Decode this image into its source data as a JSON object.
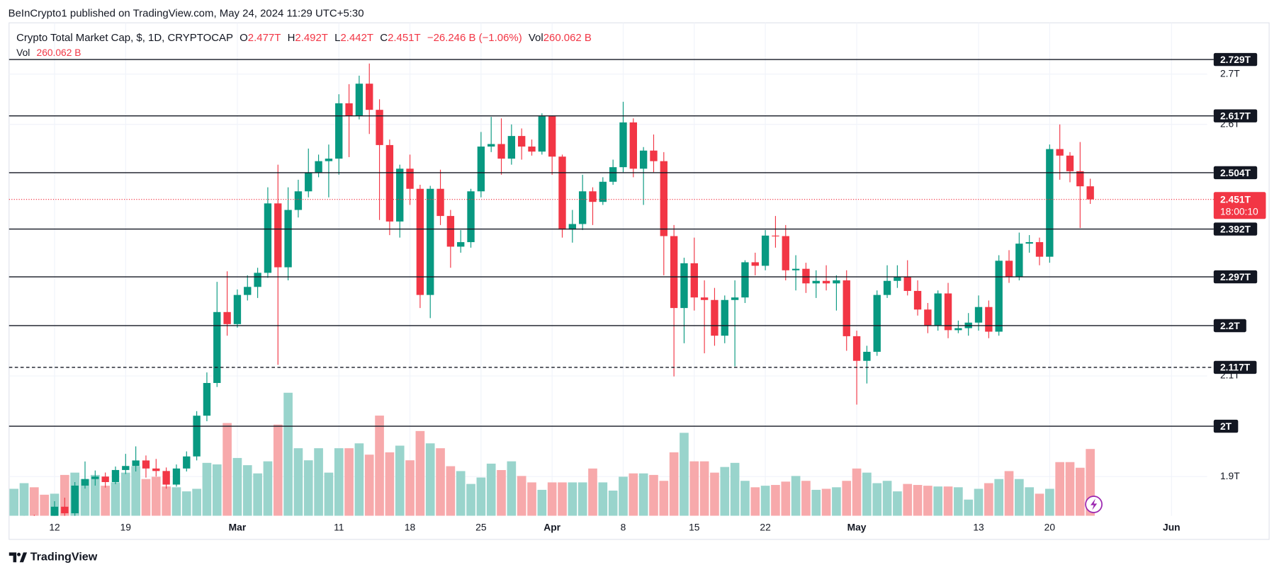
{
  "header": {
    "published": "BeInCrypto1 published on TradingView.com, May 24, 2024 11:29 UTC+5:30"
  },
  "legend": {
    "title": "Crypto Total Market Cap, $, 1D, CRYPTOCAP",
    "items": [
      {
        "key": "O",
        "value": "2.477T"
      },
      {
        "key": "H",
        "value": "2.492T"
      },
      {
        "key": "L",
        "value": "2.442T"
      },
      {
        "key": "C",
        "value": "2.451T"
      },
      {
        "key": "",
        "value": "−26.246 B (−1.06%)"
      },
      {
        "key": "Vol",
        "value": "260.062 B"
      }
    ],
    "volume_key": "Vol",
    "volume_value": "260.062 B"
  },
  "chart_data": {
    "type": "candlestick",
    "x": [
      "02-08",
      "02-09",
      "02-10",
      "02-11",
      "02-12",
      "02-13",
      "02-14",
      "02-15",
      "02-16",
      "02-17",
      "02-18",
      "02-19",
      "02-20",
      "02-21",
      "02-22",
      "02-23",
      "02-24",
      "02-25",
      "02-26",
      "02-27",
      "02-28",
      "02-29",
      "03-01",
      "03-02",
      "03-03",
      "03-04",
      "03-05",
      "03-06",
      "03-07",
      "03-08",
      "03-09",
      "03-10",
      "03-11",
      "03-12",
      "03-13",
      "03-14",
      "03-15",
      "03-16",
      "03-17",
      "03-18",
      "03-19",
      "03-20",
      "03-21",
      "03-22",
      "03-23",
      "03-24",
      "03-25",
      "03-26",
      "03-27",
      "03-28",
      "03-29",
      "03-30",
      "03-31",
      "04-01",
      "04-02",
      "04-03",
      "04-04",
      "04-05",
      "04-06",
      "04-07",
      "04-08",
      "04-09",
      "04-10",
      "04-11",
      "04-12",
      "04-13",
      "04-14",
      "04-15",
      "04-16",
      "04-17",
      "04-18",
      "04-19",
      "04-20",
      "04-21",
      "04-22",
      "04-23",
      "04-24",
      "04-25",
      "04-26",
      "04-27",
      "04-28",
      "04-29",
      "04-30",
      "05-01",
      "05-02",
      "05-03",
      "05-04",
      "05-05",
      "05-06",
      "05-07",
      "05-08",
      "05-09",
      "05-10",
      "05-11",
      "05-12",
      "05-13",
      "05-14",
      "05-15",
      "05-16",
      "05-17",
      "05-18",
      "05-19",
      "05-20",
      "05-21",
      "05-22",
      "05-23",
      "05-24"
    ],
    "open": [
      1.78,
      1.795,
      1.811,
      1.808,
      1.803,
      1.84,
      1.827,
      1.882,
      1.895,
      1.9,
      1.889,
      1.913,
      1.921,
      1.932,
      1.916,
      1.911,
      1.884,
      1.916,
      1.94,
      2.021,
      2.086,
      2.227,
      2.203,
      2.261,
      2.277,
      2.305,
      2.443,
      2.316,
      2.43,
      2.467,
      2.504,
      2.527,
      2.532,
      2.642,
      2.617,
      2.681,
      2.629,
      2.559,
      2.407,
      2.512,
      2.472,
      2.261,
      2.472,
      2.418,
      2.357,
      2.366,
      2.467,
      2.556,
      2.561,
      2.532,
      2.577,
      2.556,
      2.546,
      2.616,
      2.536,
      2.391,
      2.402,
      2.467,
      2.446,
      2.486,
      2.515,
      2.604,
      2.512,
      2.548,
      2.527,
      2.378,
      2.235,
      2.324,
      2.256,
      2.251,
      2.18,
      2.251,
      2.256,
      2.326,
      2.319,
      2.379,
      2.378,
      2.31,
      2.313,
      2.284,
      2.289,
      2.284,
      2.29,
      2.179,
      2.13,
      2.148,
      2.261,
      2.289,
      2.297,
      2.269,
      2.232,
      2.2,
      2.264,
      2.191,
      2.195,
      2.206,
      2.237,
      2.188,
      2.329,
      2.297,
      2.363,
      2.366,
      2.337,
      2.551,
      2.538,
      2.507,
      2.477
    ],
    "high": [
      1.812,
      1.822,
      1.824,
      1.818,
      1.851,
      1.858,
      1.889,
      1.93,
      1.912,
      1.908,
      1.92,
      1.945,
      1.96,
      1.942,
      1.935,
      1.918,
      1.924,
      1.95,
      2.03,
      2.107,
      2.287,
      2.308,
      2.272,
      2.3,
      2.315,
      2.475,
      2.52,
      2.475,
      2.49,
      2.552,
      2.54,
      2.56,
      2.66,
      2.68,
      2.697,
      2.721,
      2.65,
      2.57,
      2.52,
      2.54,
      2.48,
      2.478,
      2.51,
      2.43,
      2.39,
      2.472,
      2.585,
      2.615,
      2.612,
      2.6,
      2.592,
      2.57,
      2.622,
      2.618,
      2.54,
      2.43,
      2.5,
      2.475,
      2.495,
      2.53,
      2.645,
      2.612,
      2.555,
      2.58,
      2.545,
      2.4,
      2.335,
      2.375,
      2.29,
      2.275,
      2.26,
      2.29,
      2.33,
      2.345,
      2.39,
      2.418,
      2.4,
      2.34,
      2.325,
      2.31,
      2.32,
      2.3,
      2.31,
      2.19,
      2.16,
      2.27,
      2.32,
      2.32,
      2.33,
      2.29,
      2.245,
      2.27,
      2.285,
      2.21,
      2.225,
      2.26,
      2.25,
      2.34,
      2.35,
      2.385,
      2.38,
      2.375,
      2.56,
      2.6,
      2.545,
      2.565,
      2.492
    ],
    "low": [
      1.77,
      1.786,
      1.797,
      1.795,
      1.798,
      1.812,
      1.82,
      1.876,
      1.882,
      1.878,
      1.885,
      1.905,
      1.91,
      1.898,
      1.9,
      1.876,
      1.88,
      1.91,
      1.932,
      2.01,
      2.078,
      2.18,
      2.196,
      2.25,
      2.255,
      2.295,
      2.122,
      2.29,
      2.415,
      2.455,
      2.495,
      2.455,
      2.5,
      2.535,
      2.61,
      2.581,
      2.41,
      2.38,
      2.375,
      2.44,
      2.235,
      2.215,
      2.4,
      2.315,
      2.345,
      2.355,
      2.455,
      2.545,
      2.5,
      2.52,
      2.53,
      2.538,
      2.54,
      2.5,
      2.375,
      2.365,
      2.39,
      2.4,
      2.44,
      2.48,
      2.505,
      2.495,
      2.44,
      2.505,
      2.3,
      2.099,
      2.165,
      2.23,
      2.145,
      2.16,
      2.165,
      2.119,
      2.245,
      2.3,
      2.31,
      2.355,
      2.29,
      2.27,
      2.265,
      2.255,
      2.27,
      2.23,
      2.15,
      2.043,
      2.085,
      2.14,
      2.255,
      2.275,
      2.26,
      2.22,
      2.185,
      2.19,
      2.175,
      2.185,
      2.18,
      2.19,
      2.175,
      2.18,
      2.285,
      2.29,
      2.345,
      2.32,
      2.325,
      2.49,
      2.485,
      2.394,
      2.442
    ],
    "close": [
      1.795,
      1.811,
      1.808,
      1.803,
      1.84,
      1.827,
      1.882,
      1.895,
      1.9,
      1.889,
      1.913,
      1.921,
      1.932,
      1.916,
      1.911,
      1.884,
      1.916,
      1.94,
      2.021,
      2.086,
      2.227,
      2.203,
      2.261,
      2.277,
      2.305,
      2.443,
      2.316,
      2.43,
      2.467,
      2.504,
      2.527,
      2.532,
      2.642,
      2.617,
      2.681,
      2.629,
      2.559,
      2.407,
      2.512,
      2.472,
      2.261,
      2.472,
      2.418,
      2.357,
      2.366,
      2.467,
      2.556,
      2.561,
      2.532,
      2.577,
      2.556,
      2.546,
      2.616,
      2.536,
      2.391,
      2.402,
      2.467,
      2.446,
      2.486,
      2.515,
      2.604,
      2.512,
      2.548,
      2.527,
      2.378,
      2.235,
      2.324,
      2.256,
      2.251,
      2.18,
      2.251,
      2.256,
      2.326,
      2.319,
      2.379,
      2.378,
      2.31,
      2.313,
      2.284,
      2.289,
      2.284,
      2.29,
      2.179,
      2.13,
      2.148,
      2.261,
      2.289,
      2.297,
      2.269,
      2.232,
      2.2,
      2.264,
      2.191,
      2.195,
      2.206,
      2.237,
      2.188,
      2.329,
      2.297,
      2.363,
      2.366,
      2.337,
      2.551,
      2.538,
      2.507,
      2.477,
      2.451
    ],
    "volume": [
      105,
      127,
      111,
      82,
      86,
      159,
      168,
      143,
      159,
      117,
      130,
      168,
      193,
      143,
      152,
      114,
      111,
      95,
      105,
      206,
      200,
      361,
      225,
      197,
      165,
      212,
      355,
      479,
      263,
      216,
      263,
      168,
      263,
      263,
      282,
      238,
      390,
      247,
      273,
      216,
      330,
      282,
      263,
      193,
      174,
      124,
      149,
      203,
      178,
      212,
      155,
      130,
      101,
      130,
      130,
      130,
      130,
      184,
      130,
      98,
      152,
      165,
      165,
      159,
      136,
      247,
      323,
      212,
      212,
      168,
      190,
      206,
      136,
      111,
      117,
      120,
      133,
      155,
      136,
      101,
      105,
      111,
      136,
      184,
      168,
      127,
      136,
      95,
      124,
      120,
      117,
      114,
      114,
      111,
      63,
      105,
      127,
      143,
      174,
      143,
      111,
      86,
      105,
      209,
      209,
      187,
      260.062
    ],
    "up_color": "#089981",
    "down_color": "#f23645",
    "volume_up_color": "#99d4cc",
    "volume_down_color": "#f7a9ab",
    "ylim": [
      1.822,
      2.802
    ],
    "yticks": [
      {
        "value": 1.9,
        "label": "1.9T"
      },
      {
        "value": 2.1,
        "label": "2.1T"
      },
      {
        "value": 2.6,
        "label": "2.6T"
      },
      {
        "value": 2.7,
        "label": "2.7T"
      }
    ],
    "xticks": [
      {
        "value": "02-12",
        "label": "12"
      },
      {
        "value": "02-19",
        "label": "19"
      },
      {
        "value": "03-01",
        "label": "Mar"
      },
      {
        "value": "03-11",
        "label": "11"
      },
      {
        "value": "03-18",
        "label": "18"
      },
      {
        "value": "03-25",
        "label": "25"
      },
      {
        "value": "04-01",
        "label": "Apr"
      },
      {
        "value": "04-08",
        "label": "8"
      },
      {
        "value": "04-15",
        "label": "15"
      },
      {
        "value": "04-22",
        "label": "22"
      },
      {
        "value": "05-01",
        "label": "May"
      },
      {
        "value": "05-13",
        "label": "13"
      },
      {
        "value": "05-20",
        "label": "20"
      },
      {
        "value": "06-01",
        "label": "Jun"
      }
    ],
    "grid": true,
    "levels": [
      {
        "value": 2.729,
        "label": "2.729T"
      },
      {
        "value": 2.617,
        "label": "2.617T"
      },
      {
        "value": 2.504,
        "label": "2.504T"
      },
      {
        "value": 2.392,
        "label": "2.392T"
      },
      {
        "value": 2.297,
        "label": "2.297T"
      },
      {
        "value": 2.2,
        "label": "2.2T"
      },
      {
        "value": 2.117,
        "label": "2.117T",
        "style": "dashed"
      },
      {
        "value": 2.0,
        "label": "2T"
      }
    ],
    "last_price": {
      "value": 2.451,
      "label": "2.451T",
      "countdown": "18:00:10",
      "color": "#f23645"
    }
  },
  "footer": {
    "brand": "TradingView"
  }
}
